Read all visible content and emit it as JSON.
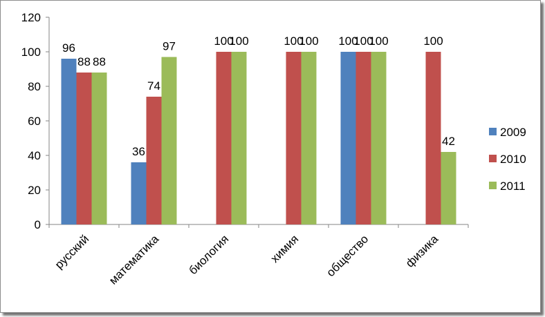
{
  "chart_data": {
    "type": "bar",
    "categories": [
      "русский",
      "математика",
      "биология",
      "химия",
      "общество",
      "физика"
    ],
    "series": [
      {
        "name": "2009",
        "color": "#4f81bd",
        "values": [
          96,
          36,
          null,
          null,
          100,
          null
        ]
      },
      {
        "name": "2010",
        "color": "#c0504d",
        "values": [
          88,
          74,
          100,
          100,
          100,
          100
        ]
      },
      {
        "name": "2011",
        "color": "#9bbb59",
        "values": [
          88,
          97,
          100,
          100,
          100,
          42
        ]
      }
    ],
    "ylim": [
      0,
      120
    ],
    "yticks": [
      0,
      20,
      40,
      60,
      80,
      100,
      120
    ],
    "title": "",
    "xlabel": "",
    "ylabel": "",
    "grid": false,
    "legend_position": "right",
    "data_labels": [
      {
        "series": 0,
        "category": 0,
        "text": "96"
      },
      {
        "series": 1,
        "category": 0,
        "text": "88"
      },
      {
        "series": 2,
        "category": 0,
        "text": "88"
      },
      {
        "series": 0,
        "category": 1,
        "text": "36"
      },
      {
        "series": 1,
        "category": 1,
        "text": "74"
      },
      {
        "series": 2,
        "category": 1,
        "text": "97"
      },
      {
        "series": 1,
        "category": 2,
        "text": "100"
      },
      {
        "series": 2,
        "category": 2,
        "text": "100"
      },
      {
        "series": 1,
        "category": 3,
        "text": "100"
      },
      {
        "series": 2,
        "category": 3,
        "text": "100"
      },
      {
        "series": 0,
        "category": 4,
        "text": "100"
      },
      {
        "series": 1,
        "category": 4,
        "text": "100"
      },
      {
        "series": 2,
        "category": 4,
        "text": "100"
      },
      {
        "series": 1,
        "category": 5,
        "text": "100"
      },
      {
        "series": 2,
        "category": 5,
        "text": "42"
      }
    ]
  }
}
